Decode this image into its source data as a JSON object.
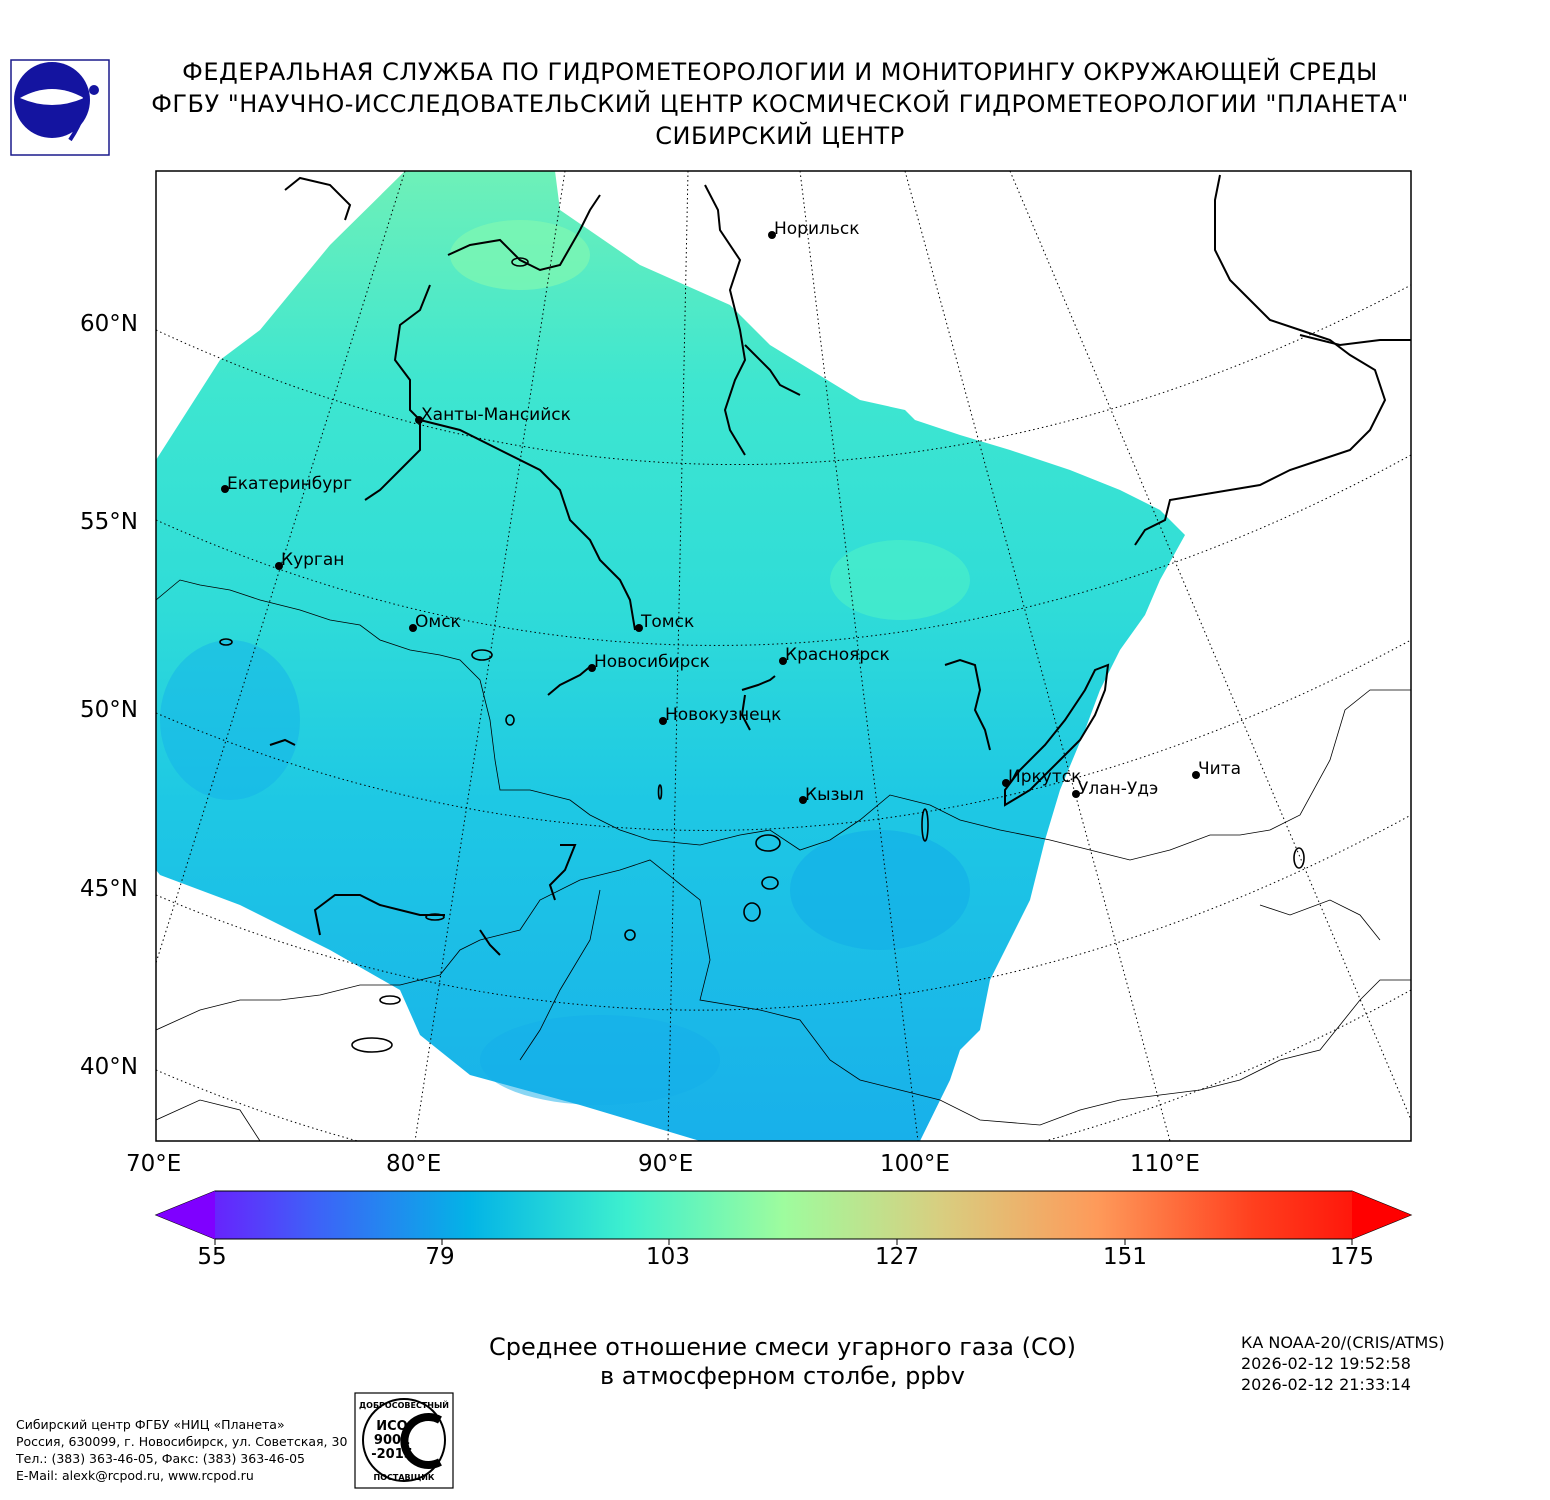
{
  "header": {
    "line1": "ФЕДЕРАЛЬНАЯ СЛУЖБА ПО ГИДРОМЕТЕОРОЛОГИИ И МОНИТОРИНГУ ОКРУЖАЮЩЕЙ СРЕДЫ",
    "line2": "ФГБУ \"НАУЧНО-ИССЛЕДОВАТЕЛЬСКИЙ ЦЕНТР КОСМИЧЕСКОЙ ГИДРОМЕТЕОРОЛОГИИ \"ПЛАНЕТА\"",
    "line3": "СИБИРСКИЙ ЦЕНТР"
  },
  "map": {
    "latitude_labels": [
      "60°N",
      "55°N",
      "50°N",
      "45°N",
      "40°N"
    ],
    "longitude_labels": [
      "70°E",
      "80°E",
      "90°E",
      "100°E",
      "110°E"
    ],
    "cities": [
      {
        "name": "Норильск"
      },
      {
        "name": "Ханты-Мансийск"
      },
      {
        "name": "Екатеринбург"
      },
      {
        "name": "Курган"
      },
      {
        "name": "Омск"
      },
      {
        "name": "Томск"
      },
      {
        "name": "Новосибирск"
      },
      {
        "name": "Красноярск"
      },
      {
        "name": "Новокузнецк"
      },
      {
        "name": "Иркутск"
      },
      {
        "name": "Улан-Удэ"
      },
      {
        "name": "Чита"
      },
      {
        "name": "Кызыл"
      }
    ],
    "colors": {
      "field_main": "#2fdcd8",
      "field_south": "#1ab6ea",
      "field_north": "#6ef0b8"
    }
  },
  "colorbar": {
    "min": 55,
    "max": 175,
    "ticks": [
      "55",
      "79",
      "103",
      "127",
      "151",
      "175"
    ],
    "colors": [
      "#7f00ff",
      "#3f60f8",
      "#03b4e6",
      "#3ef0ce",
      "#9efc9e",
      "#d8ce80",
      "#fe9a5a",
      "#ff3f1e",
      "#ff0000"
    ]
  },
  "caption": {
    "line1": "Среднее отношение смеси угарного газа (CO)",
    "line2": "в атмосферном столбе, ppbv"
  },
  "satellite": {
    "name": "КА NOAA-20/(CRIS/ATMS)",
    "start": "2026-02-12 19:52:58",
    "end": "2026-02-12 21:33:14"
  },
  "organization": {
    "line1": "Сибирский центр ФГБУ «НИЦ «Планета»",
    "line2": "Россия, 630099, г. Новосибирск, ул. Советская, 30",
    "line3": "Тел.: (383) 363-46-05, Факс: (383) 363-46-05",
    "line4": "E-Mail: alexk@rcpod.ru, www.rcpod.ru"
  },
  "iso_badge": {
    "top": "ДОБРОСОВЕСТНЫЙ",
    "mid1": "ИСО",
    "mid2": "9001",
    "mid3": "-2015",
    "bottom": "ПОСТАВЩИК"
  }
}
